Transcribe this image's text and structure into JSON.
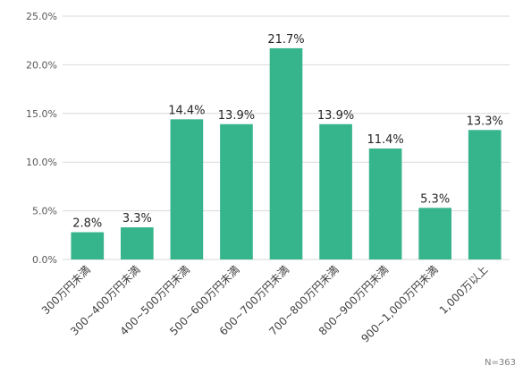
{
  "chart_data": {
    "type": "bar",
    "categories": [
      "300万円未満",
      "300~400万円未満",
      "400~500万円未満",
      "500~600万円未満",
      "600~700万円未満",
      "700~800万円未満",
      "800~900万円未満",
      "900~1,000万円未満",
      "1,000万以上"
    ],
    "values": [
      2.8,
      3.3,
      14.4,
      13.9,
      21.7,
      13.9,
      11.4,
      5.3,
      13.3
    ],
    "data_labels": [
      "2.8%",
      "3.3%",
      "14.4%",
      "13.9%",
      "21.7%",
      "13.9%",
      "11.4%",
      "5.3%",
      "13.3%"
    ],
    "yticks": [
      0,
      5,
      10,
      15,
      20,
      25
    ],
    "ytick_labels": [
      "0.0%",
      "5.0%",
      "10.0%",
      "15.0%",
      "20.0%",
      "25.0%"
    ],
    "ylim": [
      0,
      25
    ],
    "grid": true,
    "legend": "none",
    "bar_color": "#36b48c",
    "grid_color": "#d9d9d9",
    "note": "N=363"
  }
}
